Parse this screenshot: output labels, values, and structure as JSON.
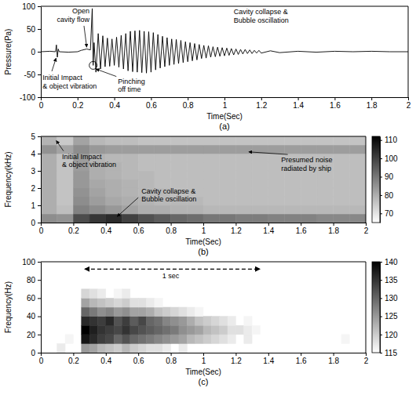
{
  "chart_data": [
    {
      "type": "line",
      "title": "(a)",
      "x_label": "Time(Sec)",
      "y_label": "Pressure(Pa)",
      "xlim": [
        0,
        2
      ],
      "ylim": [
        -100,
        100
      ],
      "xticks": [
        0,
        0.2,
        0.4,
        0.6,
        0.8,
        1,
        1.2,
        1.4,
        1.6,
        1.8,
        2
      ],
      "yticks": [
        -100,
        -50,
        0,
        50,
        100
      ],
      "color": "#000000",
      "x": [
        0,
        0.05,
        0.08,
        0.085,
        0.09,
        0.095,
        0.1,
        0.15,
        0.2,
        0.22,
        0.25,
        0.27,
        0.28,
        0.285,
        0.29,
        0.3,
        0.3125,
        0.325,
        0.3375,
        0.35,
        0.3625,
        0.375,
        0.3875,
        0.4,
        0.4125,
        0.425,
        0.4375,
        0.45,
        0.4625,
        0.475,
        0.4875,
        0.5,
        0.5125,
        0.525,
        0.5375,
        0.55,
        0.5625,
        0.575,
        0.5875,
        0.6,
        0.6125,
        0.625,
        0.6375,
        0.65,
        0.6625,
        0.675,
        0.6875,
        0.7,
        0.7125,
        0.725,
        0.7375,
        0.75,
        0.7625,
        0.775,
        0.7875,
        0.8,
        0.8125,
        0.825,
        0.8375,
        0.85,
        0.8625,
        0.875,
        0.8875,
        0.9,
        0.9125,
        0.925,
        0.9375,
        0.95,
        0.9625,
        0.975,
        0.9875,
        1,
        1.0125,
        1.025,
        1.0375,
        1.05,
        1.0625,
        1.075,
        1.0875,
        1.1,
        1.1125,
        1.125,
        1.1375,
        1.15,
        1.1625,
        1.175,
        1.1875,
        1.2,
        1.25,
        1.3,
        1.4,
        1.5,
        1.6,
        1.7,
        1.8,
        1.9,
        2
      ],
      "values": [
        0,
        1,
        0,
        15,
        -12,
        6,
        0,
        -1,
        0,
        3,
        6,
        4,
        95,
        -30,
        20,
        -45,
        40,
        -38,
        35,
        -33,
        30,
        -32,
        28,
        -30,
        32,
        -34,
        36,
        -38,
        40,
        -42,
        45,
        -44,
        46,
        -45,
        47,
        -46,
        45,
        -47,
        44,
        -45,
        42,
        -40,
        38,
        -36,
        34,
        -33,
        31,
        -30,
        28,
        -28,
        27,
        -26,
        25,
        -24,
        22,
        -22,
        20,
        -20,
        18,
        -18,
        16,
        -15,
        14,
        -14,
        13,
        -12,
        11,
        -11,
        10,
        -10,
        9,
        -9,
        8,
        -8,
        7,
        -7,
        6,
        -6,
        5,
        -5,
        5,
        -4,
        4,
        -4,
        3,
        -3,
        3,
        -3,
        2,
        -2,
        1,
        -1,
        1,
        0,
        1,
        0,
        0
      ],
      "annotations": [
        "Initial Impact\n& object vibration",
        "Open\ncavity flow",
        "Pinching\noff time",
        "Cavity collapse &\nBubble oscillation"
      ]
    },
    {
      "type": "heatmap",
      "title": "(b)",
      "x_label": "Time(Sec)",
      "y_label": "Frequency(kHz)",
      "xlim": [
        0,
        2
      ],
      "ylim": [
        0,
        5
      ],
      "xticks": [
        0,
        0.2,
        0.4,
        0.6,
        0.8,
        1,
        1.2,
        1.4,
        1.6,
        1.8,
        2
      ],
      "yticks": [
        0,
        1,
        2,
        3,
        4,
        5
      ],
      "color": "#000000",
      "x_edges": [
        0,
        0.1,
        0.2,
        0.3,
        0.4,
        0.5,
        0.6,
        0.7,
        0.8,
        0.9,
        1,
        1.1,
        1.2,
        1.3,
        1.4,
        1.5,
        1.6,
        1.7,
        1.8,
        1.9,
        2
      ],
      "y_edges": [
        0,
        0.5,
        1,
        1.5,
        2,
        2.5,
        3,
        3.5,
        4,
        4.5,
        5
      ],
      "z": [
        [
          86,
          85,
          98,
          102,
          104,
          100,
          97,
          95,
          93,
          92,
          90,
          90,
          89,
          89,
          88,
          88,
          88,
          87,
          87,
          87
        ],
        [
          80,
          77,
          88,
          86,
          84,
          82,
          80,
          80,
          79,
          79,
          78,
          78,
          78,
          78,
          78,
          78,
          78,
          78,
          78,
          78
        ],
        [
          80,
          76,
          86,
          83,
          81,
          80,
          79,
          78,
          78,
          78,
          77,
          77,
          77,
          77,
          77,
          77,
          77,
          77,
          77,
          77
        ],
        [
          80,
          76,
          85,
          82,
          80,
          79,
          78,
          78,
          77,
          77,
          77,
          77,
          77,
          77,
          77,
          77,
          77,
          77,
          77,
          77
        ],
        [
          80,
          76,
          84,
          81,
          80,
          79,
          78,
          77,
          77,
          77,
          77,
          77,
          77,
          77,
          77,
          77,
          77,
          77,
          77,
          77
        ],
        [
          80,
          76,
          84,
          80,
          79,
          78,
          78,
          77,
          77,
          77,
          77,
          77,
          77,
          77,
          77,
          77,
          77,
          77,
          77,
          77
        ],
        [
          80,
          76,
          83,
          80,
          79,
          78,
          77,
          77,
          77,
          77,
          77,
          77,
          77,
          77,
          77,
          77,
          77,
          77,
          77,
          77
        ],
        [
          80,
          76,
          83,
          79,
          78,
          78,
          77,
          77,
          77,
          77,
          77,
          77,
          77,
          77,
          77,
          77,
          77,
          77,
          77,
          77
        ],
        [
          85,
          82,
          86,
          84,
          83,
          83,
          83,
          83,
          83,
          83,
          83,
          83,
          83,
          83,
          83,
          83,
          83,
          83,
          83,
          83
        ],
        [
          79,
          75,
          82,
          78,
          77,
          77,
          76,
          76,
          76,
          76,
          76,
          76,
          76,
          76,
          76,
          76,
          76,
          76,
          76,
          76
        ]
      ],
      "colorbar": {
        "range": [
          65,
          112
        ],
        "ticks": [
          70,
          80,
          90,
          100,
          110
        ]
      },
      "annotations": [
        "Initial Impact\n& object vibration",
        "Cavity collapse &\nBubble oscillation",
        "Presumed noise\nradiated by ship"
      ]
    },
    {
      "type": "heatmap",
      "title": "(c)",
      "x_label": "Time(Sec)",
      "y_label": "Frequency(Hz)",
      "xlim": [
        0,
        2
      ],
      "ylim": [
        0,
        100
      ],
      "xticks": [
        0,
        0.2,
        0.4,
        0.6,
        0.8,
        1,
        1.2,
        1.4,
        1.6,
        1.8,
        2
      ],
      "yticks": [
        0,
        20,
        40,
        60,
        80,
        100
      ],
      "color": "#000000",
      "x_edges": [
        0,
        0.05,
        0.1,
        0.15,
        0.2,
        0.25,
        0.3,
        0.35,
        0.4,
        0.45,
        0.5,
        0.55,
        0.6,
        0.65,
        0.7,
        0.75,
        0.8,
        0.85,
        0.9,
        0.95,
        1,
        1.05,
        1.1,
        1.15,
        1.2,
        1.25,
        1.3,
        1.35,
        1.4,
        1.45,
        1.5,
        1.55,
        1.6,
        1.65,
        1.7,
        1.75,
        1.8,
        1.85,
        1.9,
        1.95,
        2
      ],
      "y_edges": [
        0,
        10,
        20,
        30,
        40,
        50,
        60,
        70
      ],
      "z": [
        [
          null,
          null,
          117,
          null,
          null,
          125,
          124,
          122,
          121,
          120,
          122,
          120,
          119,
          118,
          118,
          117,
          null,
          117,
          null,
          null,
          null,
          null,
          null,
          null,
          null,
          null,
          null,
          null,
          null,
          null,
          null,
          null,
          null,
          null,
          null,
          null,
          null,
          null,
          null,
          null
        ],
        [
          null,
          null,
          null,
          116,
          null,
          138,
          136,
          134,
          133,
          130,
          132,
          130,
          129,
          128,
          127,
          126,
          125,
          124,
          122,
          121,
          120,
          119,
          118,
          117,
          null,
          117,
          null,
          null,
          null,
          null,
          null,
          null,
          null,
          null,
          null,
          null,
          null,
          116,
          null,
          null
        ],
        [
          null,
          null,
          null,
          null,
          null,
          140,
          137,
          135,
          134,
          133,
          135,
          133,
          132,
          131,
          130,
          129,
          128,
          126,
          125,
          124,
          122,
          121,
          120,
          118,
          118,
          117,
          116,
          null,
          null,
          null,
          null,
          null,
          null,
          null,
          null,
          null,
          null,
          null,
          null,
          null
        ],
        [
          null,
          null,
          null,
          null,
          null,
          136,
          135,
          134,
          136,
          132,
          134,
          131,
          133,
          130,
          129,
          127,
          126,
          125,
          123,
          121,
          120,
          119,
          118,
          117,
          null,
          116,
          null,
          null,
          null,
          null,
          null,
          null,
          null,
          null,
          null,
          null,
          null,
          null,
          null,
          null
        ],
        [
          null,
          null,
          null,
          null,
          null,
          130,
          128,
          126,
          127,
          125,
          126,
          124,
          124,
          123,
          121,
          120,
          119,
          118,
          117,
          116,
          null,
          null,
          null,
          null,
          null,
          null,
          null,
          null,
          null,
          null,
          null,
          null,
          null,
          null,
          null,
          null,
          null,
          null,
          null,
          null
        ],
        [
          null,
          null,
          null,
          null,
          null,
          124,
          122,
          121,
          120,
          119,
          120,
          118,
          118,
          117,
          116,
          null,
          null,
          null,
          null,
          null,
          null,
          null,
          null,
          null,
          null,
          null,
          null,
          null,
          null,
          null,
          null,
          null,
          null,
          null,
          null,
          null,
          null,
          null,
          null,
          null
        ],
        [
          null,
          null,
          null,
          null,
          null,
          119,
          118,
          117,
          null,
          116,
          117,
          null,
          null,
          null,
          null,
          null,
          null,
          null,
          null,
          null,
          null,
          null,
          null,
          null,
          null,
          null,
          null,
          null,
          null,
          null,
          null,
          null,
          null,
          null,
          null,
          null,
          null,
          null,
          null,
          null
        ]
      ],
      "colorbar": {
        "range": [
          115,
          140
        ],
        "ticks": [
          115,
          120,
          125,
          130,
          135,
          140
        ]
      },
      "annotations": [
        "1 sec"
      ]
    }
  ]
}
